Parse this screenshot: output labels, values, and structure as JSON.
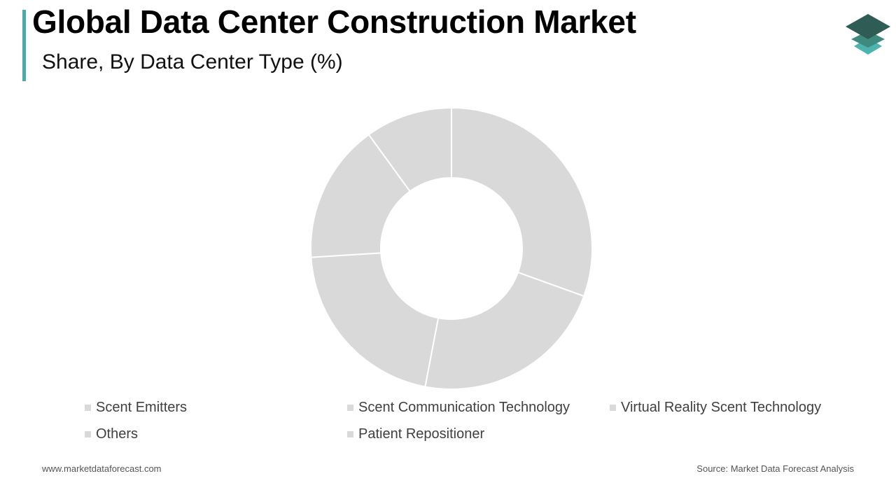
{
  "header": {
    "title": "Global Data Center Construction Market",
    "subtitle": "Share, By Data Center Type (%)"
  },
  "colors": {
    "accent": "#4fa9a4",
    "slice_fill": "#d9d9d9",
    "slice_stroke": "#ffffff",
    "legend_swatch": "#d9d9d9",
    "logo_top": "#2f5c55",
    "logo_middle": "#3f8a7f",
    "logo_bottom": "#4fb3ad"
  },
  "chart_data": {
    "type": "pie",
    "donut": true,
    "categories": [
      "Scent Emitters",
      "Scent Communication Technology",
      "Virtual Reality Scent Technology",
      "Others",
      "Patient Repositioner"
    ],
    "values": [
      30.5,
      22.5,
      21.0,
      16.0,
      10.0
    ],
    "start_angle_deg": 0,
    "direction": "clockwise",
    "legend": "bottom"
  },
  "legend": {
    "items": [
      "Scent Emitters",
      "Scent Communication Technology",
      "Virtual Reality Scent Technology",
      "Others",
      "Patient Repositioner"
    ]
  },
  "footer": {
    "website": "www.marketdataforecast.com",
    "source": "Source: Market Data Forecast Analysis"
  }
}
